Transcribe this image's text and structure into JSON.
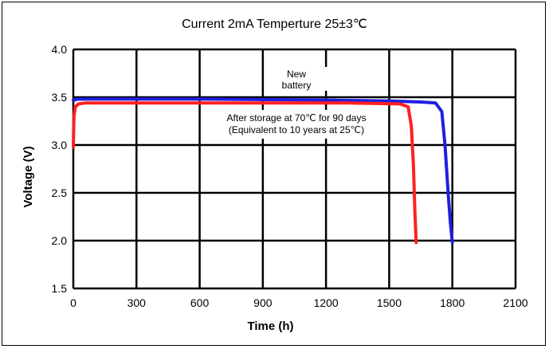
{
  "chart_data": {
    "type": "line",
    "title": "Current 2mA  Temperture 25±3℃",
    "xlabel": "Time (h)",
    "ylabel": "Voltage (V)",
    "xlim": [
      0,
      2100
    ],
    "ylim": [
      1.5,
      4.0
    ],
    "xticks": [
      "0",
      "300",
      "600",
      "900",
      "1200",
      "1500",
      "1800",
      "2100"
    ],
    "yticks": [
      "1.5",
      "2.0",
      "2.5",
      "3.0",
      "3.5",
      "4.0"
    ],
    "grid": true,
    "series": [
      {
        "name": "New battery",
        "color": "#1f1fe0",
        "x": [
          0,
          5,
          20,
          100,
          600,
          1200,
          1500,
          1650,
          1720,
          1750,
          1765,
          1780,
          1790,
          1800
        ],
        "y": [
          3.47,
          3.47,
          3.48,
          3.48,
          3.48,
          3.47,
          3.46,
          3.45,
          3.44,
          3.35,
          3.0,
          2.5,
          2.2,
          1.98
        ]
      },
      {
        "name": "After storage at 70℃ for 90 days (Equivalent to 10 years at 25℃)",
        "color": "#ff2020",
        "x": [
          0,
          3,
          10,
          25,
          60,
          200,
          800,
          1300,
          1550,
          1590,
          1605,
          1615,
          1622,
          1628
        ],
        "y": [
          2.98,
          3.3,
          3.4,
          3.43,
          3.44,
          3.44,
          3.44,
          3.44,
          3.43,
          3.4,
          3.2,
          2.8,
          2.3,
          1.98
        ]
      }
    ],
    "annotations": [
      {
        "lines": [
          "New",
          "battery"
        ]
      },
      {
        "lines": [
          "After storage at 70℃ for 90 days",
          "(Equivalent to 10 years at 25℃)"
        ]
      }
    ]
  }
}
